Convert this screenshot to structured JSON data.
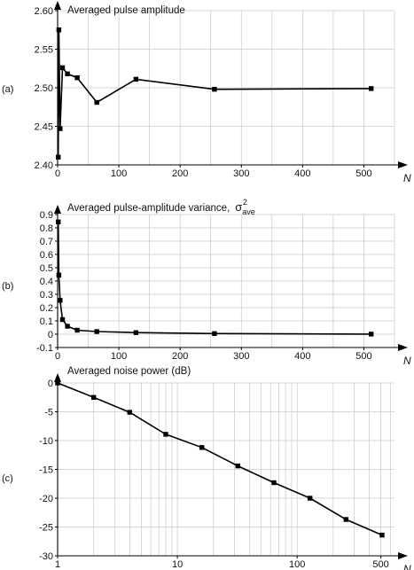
{
  "chart_data": [
    {
      "type": "line",
      "panel_label": "(a)",
      "title": "Averaged pulse amplitude",
      "xlabel": "N",
      "ylabel": "",
      "xlim": [
        0,
        550
      ],
      "ylim": [
        2.4,
        2.6
      ],
      "x_ticks": [
        0,
        100,
        200,
        300,
        400,
        500
      ],
      "x_tick_labels": [
        "0",
        "100",
        "200",
        "300",
        "400",
        "500"
      ],
      "y_ticks": [
        2.4,
        2.45,
        2.5,
        2.55,
        2.6
      ],
      "y_tick_labels": [
        "2.40",
        "2.45",
        "2.50",
        "2.55",
        "2.60"
      ],
      "grid": true,
      "log_x": false,
      "series": [
        {
          "x": [
            1,
            2,
            4,
            8,
            16,
            32,
            64,
            128,
            256,
            512
          ],
          "y": [
            2.41,
            2.575,
            2.447,
            2.526,
            2.518,
            2.513,
            2.481,
            2.511,
            2.498,
            2.499
          ]
        }
      ]
    },
    {
      "type": "line",
      "panel_label": "(b)",
      "title": "Averaged pulse-amplitude variance,",
      "title_symbol": "σ",
      "title_symbol_sup": "2",
      "title_symbol_sub": "ave",
      "xlabel": "N",
      "ylabel": "",
      "xlim": [
        0,
        550
      ],
      "ylim": [
        -0.1,
        0.9
      ],
      "x_ticks": [
        0,
        100,
        200,
        300,
        400,
        500
      ],
      "x_tick_labels": [
        "0",
        "100",
        "200",
        "300",
        "400",
        "500"
      ],
      "y_ticks": [
        -0.1,
        0,
        0.1,
        0.2,
        0.3,
        0.4,
        0.5,
        0.6,
        0.7,
        0.8,
        0.9
      ],
      "y_tick_labels": [
        "-0.1",
        "0",
        "0.1",
        "0.2",
        "0.3",
        "0.4",
        "0.5",
        "0.6",
        "0.7",
        "0.8",
        "0.9"
      ],
      "grid": true,
      "log_x": false,
      "series": [
        {
          "x": [
            1,
            2,
            4,
            8,
            16,
            32,
            64,
            128,
            256,
            512
          ],
          "y": [
            0.845,
            0.445,
            0.255,
            0.11,
            0.06,
            0.03,
            0.02,
            0.012,
            0.005,
            0.001
          ]
        }
      ]
    },
    {
      "type": "line",
      "panel_label": "(c)",
      "title": "Averaged noise power (dB)",
      "xlabel": "N",
      "ylabel": "",
      "xlim": [
        1,
        650
      ],
      "ylim": [
        -30,
        0
      ],
      "x_ticks": [
        1,
        10,
        100,
        500
      ],
      "x_tick_labels": [
        "1",
        "10",
        "100",
        "500"
      ],
      "y_ticks": [
        -30,
        -25,
        -20,
        -15,
        -10,
        -5,
        0
      ],
      "y_tick_labels": [
        "-30",
        "-25",
        "-20",
        "-15",
        "-10",
        "-5",
        "0"
      ],
      "grid": true,
      "log_x": true,
      "series": [
        {
          "x": [
            1,
            2,
            4,
            8,
            16,
            32,
            64,
            128,
            256,
            512
          ],
          "y": [
            0,
            -2.5,
            -5.1,
            -8.9,
            -11.2,
            -14.4,
            -17.3,
            -20.0,
            -23.7,
            -26.4
          ]
        }
      ]
    }
  ]
}
